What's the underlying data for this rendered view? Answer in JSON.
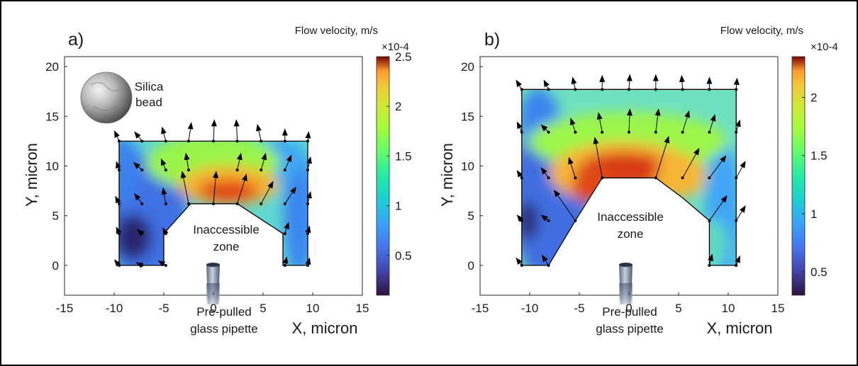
{
  "chart_data": [
    {
      "panel": "a)",
      "type": "heatmap",
      "xlabel": "X, micron",
      "ylabel": "Y, micron",
      "xlim": [
        -15,
        15
      ],
      "ylim": [
        -3,
        21
      ],
      "xticks": [
        "-15",
        "-10",
        "-5",
        "0",
        "5",
        "10",
        "15"
      ],
      "yticks": [
        "0",
        "5",
        "10",
        "15",
        "20"
      ],
      "colorbar": {
        "title": "Flow velocity, m/s",
        "exponent": "×10-4",
        "range": [
          0.1,
          2.5
        ],
        "tick_values": [
          0.5,
          1,
          1.5,
          2,
          2.5
        ],
        "tick_labels": [
          "0.5",
          "1",
          "1.5",
          "2",
          "2.5"
        ],
        "colormap": "turbo"
      },
      "region_outline": [
        [
          -9.5,
          0
        ],
        [
          -7,
          0
        ],
        [
          -5,
          0
        ],
        [
          -5,
          3.2
        ],
        [
          -2.3,
          6.2
        ],
        [
          2.4,
          6.2
        ],
        [
          7,
          3.2
        ],
        [
          7,
          0
        ],
        [
          9.5,
          0
        ],
        [
          9.5,
          12.5
        ],
        [
          -9.5,
          12.5
        ]
      ],
      "velocity_vectors": [
        {
          "x": -9.5,
          "y": 12.5,
          "dx": -0.5,
          "dy": 1.1
        },
        {
          "x": -7.2,
          "y": 12.5,
          "dx": -0.8,
          "dy": 1.0
        },
        {
          "x": -4.8,
          "y": 12.5,
          "dx": -0.4,
          "dy": 1.5
        },
        {
          "x": -2.5,
          "y": 12.5,
          "dx": 0.3,
          "dy": 2.0
        },
        {
          "x": 0,
          "y": 12.5,
          "dx": 0.1,
          "dy": 2.3
        },
        {
          "x": 2.4,
          "y": 12.5,
          "dx": -0.1,
          "dy": 2.3
        },
        {
          "x": 4.8,
          "y": 12.5,
          "dx": -0.4,
          "dy": 1.8
        },
        {
          "x": 7.2,
          "y": 12.5,
          "dx": 0,
          "dy": 1.3
        },
        {
          "x": 9.5,
          "y": 12.5,
          "dx": 0.1,
          "dy": 1.0
        },
        {
          "x": -9.5,
          "y": 9.6,
          "dx": -0.3,
          "dy": 0.9
        },
        {
          "x": -7.2,
          "y": 9.6,
          "dx": -0.9,
          "dy": 0.8
        },
        {
          "x": -4.8,
          "y": 9.6,
          "dx": -0.5,
          "dy": 1.2
        },
        {
          "x": -2.5,
          "y": 9.6,
          "dx": -0.3,
          "dy": 1.8
        },
        {
          "x": 2.4,
          "y": 9.6,
          "dx": 0.4,
          "dy": 1.8
        },
        {
          "x": 4.8,
          "y": 9.6,
          "dx": 0.5,
          "dy": 1.8
        },
        {
          "x": 7.2,
          "y": 9.6,
          "dx": 0.7,
          "dy": 1.6
        },
        {
          "x": 9.5,
          "y": 9.6,
          "dx": 0.3,
          "dy": 1.4
        },
        {
          "x": -9.5,
          "y": 6.2,
          "dx": -0.4,
          "dy": 0.8
        },
        {
          "x": -7.2,
          "y": 6.2,
          "dx": -0.8,
          "dy": 1.1
        },
        {
          "x": -4.8,
          "y": 6.2,
          "dx": -0.3,
          "dy": 1.7
        },
        {
          "x": -2.5,
          "y": 6.2,
          "dx": -0.7,
          "dy": 3.5
        },
        {
          "x": 0,
          "y": 6.2,
          "dx": 0.3,
          "dy": 3.5
        },
        {
          "x": 2.4,
          "y": 6.2,
          "dx": 1.0,
          "dy": 3.2
        },
        {
          "x": 4.8,
          "y": 6.2,
          "dx": 1.3,
          "dy": 2.4
        },
        {
          "x": 7.2,
          "y": 6.2,
          "dx": 1.2,
          "dy": 1.8
        },
        {
          "x": 9.5,
          "y": 6.2,
          "dx": 0.3,
          "dy": 1.3
        },
        {
          "x": -9.5,
          "y": 3.2,
          "dx": -0.3,
          "dy": 0.7
        },
        {
          "x": -7.2,
          "y": 3.2,
          "dx": -0.5,
          "dy": 0.4
        },
        {
          "x": -4.8,
          "y": 3.2,
          "dx": -0.3,
          "dy": 0.6
        },
        {
          "x": 7.2,
          "y": 3.2,
          "dx": 0.4,
          "dy": 1.2
        },
        {
          "x": 9.5,
          "y": 3.2,
          "dx": 0.2,
          "dy": 0.8
        },
        {
          "x": -9.5,
          "y": 0,
          "dx": -0.5,
          "dy": 0.6
        },
        {
          "x": -7.2,
          "y": 0,
          "dx": -0.6,
          "dy": 0.3
        },
        {
          "x": -4.8,
          "y": 0,
          "dx": -0.8,
          "dy": 0.5
        },
        {
          "x": 7.2,
          "y": 0,
          "dx": 0.2,
          "dy": 0.9
        },
        {
          "x": 9.5,
          "y": 0,
          "dx": 0.2,
          "dy": 0.8
        }
      ],
      "annotations": {
        "inaccessible": [
          "Inaccessible",
          "zone"
        ],
        "pipette": [
          "Pre-pulled",
          "glass pipette"
        ],
        "bead": [
          "Silica",
          "bead"
        ]
      }
    },
    {
      "panel": "b)",
      "type": "heatmap",
      "xlabel": "X, micron",
      "ylabel": "Y, micron",
      "xlim": [
        -15,
        15
      ],
      "ylim": [
        -3,
        21
      ],
      "xticks": [
        "-15",
        "-10",
        "-5",
        "0",
        "5",
        "10",
        "15"
      ],
      "yticks": [
        "0",
        "5",
        "10",
        "15",
        "20"
      ],
      "colorbar": {
        "title": "Flow velocity, m/s",
        "exponent": "×10-4",
        "range": [
          0.3,
          2.35
        ],
        "tick_values": [
          0.5,
          1,
          1.5,
          2
        ],
        "tick_labels": [
          "0.5",
          "1",
          "1.5",
          "2"
        ],
        "colormap": "turbo"
      },
      "region_outline": [
        [
          -10.8,
          0
        ],
        [
          -8.1,
          0
        ],
        [
          -5.4,
          4.5
        ],
        [
          -2.7,
          8.8
        ],
        [
          2.7,
          8.8
        ],
        [
          5.4,
          6.8
        ],
        [
          8.1,
          4.5
        ],
        [
          8.1,
          0
        ],
        [
          10.8,
          0
        ],
        [
          10.8,
          17.7
        ],
        [
          -10.8,
          17.7
        ]
      ],
      "velocity_vectors": [
        {
          "x": -10.8,
          "y": 17.7,
          "dx": -0.6,
          "dy": 1.0
        },
        {
          "x": -8.1,
          "y": 17.7,
          "dx": -0.5,
          "dy": 1.0
        },
        {
          "x": -5.4,
          "y": 17.7,
          "dx": -0.3,
          "dy": 1.3
        },
        {
          "x": -2.7,
          "y": 17.7,
          "dx": 0,
          "dy": 1.5
        },
        {
          "x": 0,
          "y": 17.7,
          "dx": 0.1,
          "dy": 1.6
        },
        {
          "x": 2.7,
          "y": 17.7,
          "dx": 0,
          "dy": 1.6
        },
        {
          "x": 5.4,
          "y": 17.7,
          "dx": -0.1,
          "dy": 1.5
        },
        {
          "x": 8.1,
          "y": 17.7,
          "dx": 0,
          "dy": 1.3
        },
        {
          "x": 10.8,
          "y": 17.7,
          "dx": 0.1,
          "dy": 1.2
        },
        {
          "x": -10.8,
          "y": 13.4,
          "dx": -0.5,
          "dy": 1.1
        },
        {
          "x": -8.1,
          "y": 13.4,
          "dx": -0.8,
          "dy": 0.8
        },
        {
          "x": -5.4,
          "y": 13.4,
          "dx": -0.5,
          "dy": 1.5
        },
        {
          "x": -2.7,
          "y": 13.4,
          "dx": -0.4,
          "dy": 2.1
        },
        {
          "x": 0,
          "y": 13.4,
          "dx": 0.1,
          "dy": 2.5
        },
        {
          "x": 2.7,
          "y": 13.4,
          "dx": 0.3,
          "dy": 2.5
        },
        {
          "x": 5.4,
          "y": 13.4,
          "dx": 0.7,
          "dy": 2.3
        },
        {
          "x": 8.1,
          "y": 13.4,
          "dx": 0.6,
          "dy": 1.9
        },
        {
          "x": 10.8,
          "y": 13.4,
          "dx": 0.4,
          "dy": 1.3
        },
        {
          "x": -10.8,
          "y": 8.8,
          "dx": -0.5,
          "dy": 0.8
        },
        {
          "x": -8.1,
          "y": 8.8,
          "dx": -0.8,
          "dy": 1.1
        },
        {
          "x": -5.4,
          "y": 8.8,
          "dx": -0.7,
          "dy": 2.2
        },
        {
          "x": -2.7,
          "y": 8.8,
          "dx": -0.8,
          "dy": 4.4
        },
        {
          "x": 2.7,
          "y": 8.8,
          "dx": 1.4,
          "dy": 4.5
        },
        {
          "x": 5.4,
          "y": 8.8,
          "dx": 1.8,
          "dy": 3.2
        },
        {
          "x": 8.1,
          "y": 8.8,
          "dx": 1.8,
          "dy": 2.4
        },
        {
          "x": 10.8,
          "y": 8.8,
          "dx": 1.0,
          "dy": 1.8
        },
        {
          "x": -10.8,
          "y": 4.5,
          "dx": -0.5,
          "dy": 0.6
        },
        {
          "x": -8.1,
          "y": 4.5,
          "dx": -0.8,
          "dy": 0.6
        },
        {
          "x": -5.4,
          "y": 4.5,
          "dx": -2.3,
          "dy": 3.3
        },
        {
          "x": 8.1,
          "y": 4.5,
          "dx": 1.9,
          "dy": 2.7
        },
        {
          "x": 10.8,
          "y": 4.5,
          "dx": 1.0,
          "dy": 1.6
        },
        {
          "x": -10.8,
          "y": 0,
          "dx": -0.6,
          "dy": 0.8
        },
        {
          "x": -8.1,
          "y": 0,
          "dx": -0.7,
          "dy": 1.1
        },
        {
          "x": 8.1,
          "y": 0,
          "dx": 0.3,
          "dy": 1.2
        },
        {
          "x": 10.8,
          "y": 0,
          "dx": 0.4,
          "dy": 1.0
        }
      ],
      "annotations": {
        "inaccessible": [
          "Inaccessible",
          "zone"
        ],
        "pipette": [
          "Pre-pulled",
          "glass pipette"
        ]
      }
    }
  ]
}
